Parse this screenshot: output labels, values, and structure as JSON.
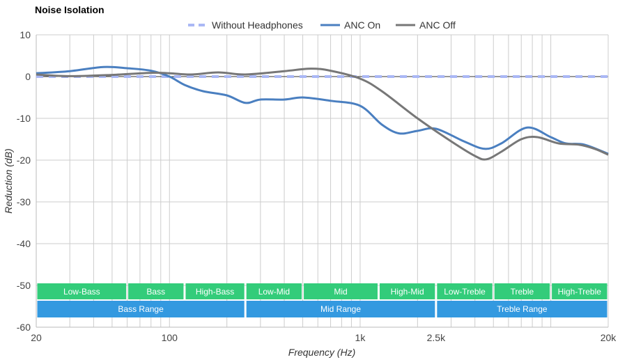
{
  "chart_data": {
    "type": "line",
    "title": "Noise Isolation",
    "xlabel": "Frequency (Hz)",
    "ylabel": "Reduction (dB)",
    "xscale": "log",
    "xlim": [
      20,
      20000
    ],
    "ylim": [
      -60,
      10
    ],
    "yticks": [
      10,
      0,
      -10,
      -20,
      -30,
      -40,
      -50,
      -60
    ],
    "xticks": [
      {
        "v": 20,
        "label": "20"
      },
      {
        "v": 100,
        "label": "100"
      },
      {
        "v": 1000,
        "label": "1k"
      },
      {
        "v": 2500,
        "label": "2.5k"
      },
      {
        "v": 20000,
        "label": "20k"
      }
    ],
    "grid": true,
    "legend_position": "top-center",
    "series": [
      {
        "name": "Without Headphones",
        "color": "#aab8f5",
        "dashed": true,
        "points": [
          [
            20,
            0
          ],
          [
            20000,
            0
          ]
        ]
      },
      {
        "name": "ANC On",
        "color": "#4a7fc0",
        "points": [
          [
            20,
            0.8
          ],
          [
            30,
            1.3
          ],
          [
            45,
            2.3
          ],
          [
            60,
            2
          ],
          [
            80,
            1.4
          ],
          [
            100,
            0
          ],
          [
            120,
            -2
          ],
          [
            150,
            -3.5
          ],
          [
            200,
            -4.5
          ],
          [
            250,
            -6.3
          ],
          [
            300,
            -5.5
          ],
          [
            400,
            -5.5
          ],
          [
            500,
            -5
          ],
          [
            700,
            -5.8
          ],
          [
            1000,
            -7
          ],
          [
            1300,
            -11.5
          ],
          [
            1600,
            -13.6
          ],
          [
            2000,
            -13
          ],
          [
            2500,
            -12.5
          ],
          [
            3500,
            -15.5
          ],
          [
            4500,
            -17.3
          ],
          [
            5500,
            -16
          ],
          [
            7500,
            -12.2
          ],
          [
            10000,
            -14.5
          ],
          [
            12000,
            -16
          ],
          [
            15000,
            -16.3
          ],
          [
            20000,
            -18.5
          ]
        ]
      },
      {
        "name": "ANC Off",
        "color": "#777777",
        "points": [
          [
            20,
            0.5
          ],
          [
            30,
            0.1
          ],
          [
            50,
            0.4
          ],
          [
            80,
            0.9
          ],
          [
            100,
            0.8
          ],
          [
            130,
            0.5
          ],
          [
            180,
            1
          ],
          [
            250,
            0.5
          ],
          [
            400,
            1.3
          ],
          [
            550,
            1.9
          ],
          [
            700,
            1.4
          ],
          [
            1000,
            -0.5
          ],
          [
            1300,
            -3.5
          ],
          [
            2000,
            -10
          ],
          [
            3000,
            -15.5
          ],
          [
            4000,
            -19
          ],
          [
            4600,
            -19.8
          ],
          [
            5500,
            -18
          ],
          [
            7000,
            -15
          ],
          [
            8500,
            -14.5
          ],
          [
            11000,
            -16
          ],
          [
            14000,
            -16.3
          ],
          [
            17000,
            -17.3
          ],
          [
            20000,
            -18.7
          ]
        ]
      }
    ],
    "bands": [
      {
        "label": "Low-Bass",
        "from": 20,
        "to": 60
      },
      {
        "label": "Bass",
        "from": 60,
        "to": 120
      },
      {
        "label": "High-Bass",
        "from": 120,
        "to": 250
      },
      {
        "label": "Low-Mid",
        "from": 250,
        "to": 500
      },
      {
        "label": "Mid",
        "from": 500,
        "to": 1250
      },
      {
        "label": "High-Mid",
        "from": 1250,
        "to": 2500
      },
      {
        "label": "Low-Treble",
        "from": 2500,
        "to": 5000
      },
      {
        "label": "Treble",
        "from": 5000,
        "to": 10000
      },
      {
        "label": "High-Treble",
        "from": 10000,
        "to": 20000
      }
    ],
    "ranges": [
      {
        "label": "Bass Range",
        "from": 20,
        "to": 250
      },
      {
        "label": "Mid Range",
        "from": 250,
        "to": 2500
      },
      {
        "label": "Treble Range",
        "from": 2500,
        "to": 20000
      }
    ],
    "colors": {
      "band": "#33cc7a",
      "range": "#3399e0"
    }
  }
}
